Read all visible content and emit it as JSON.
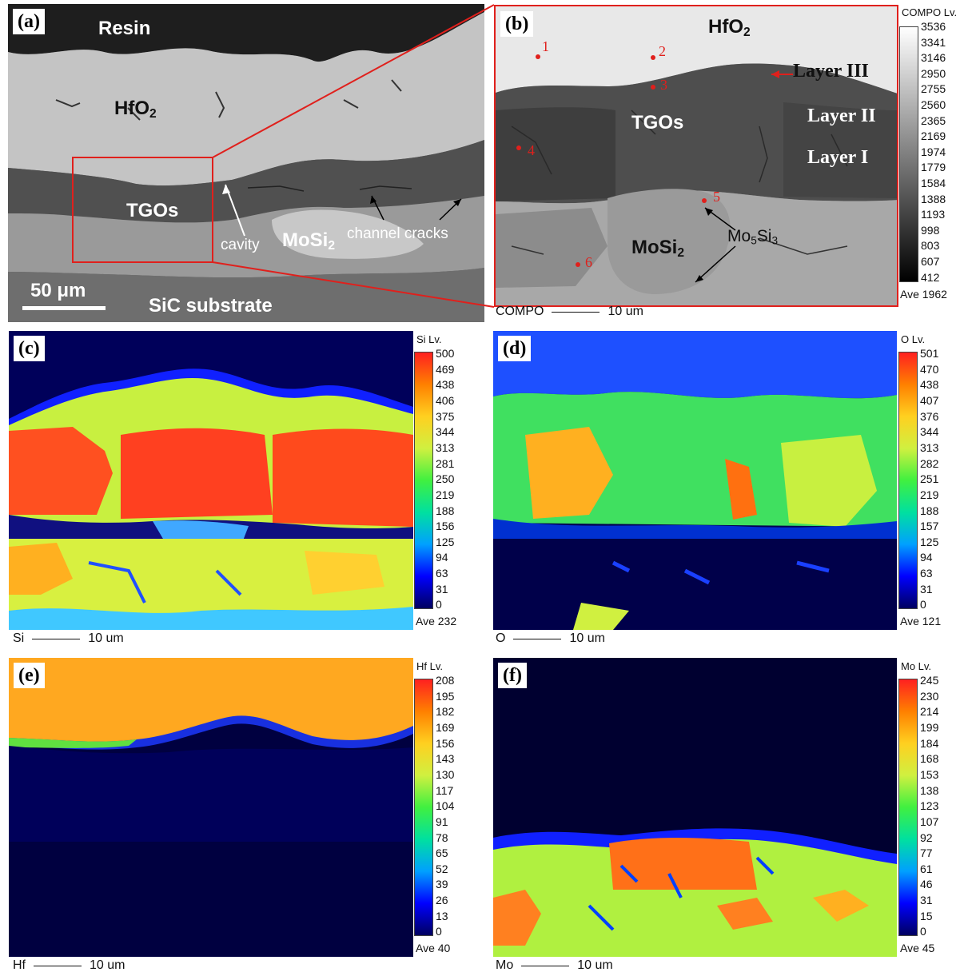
{
  "panel_a": {
    "letter": "(a)",
    "labels": {
      "resin": "Resin",
      "hfo2": "HfO",
      "hfo2_sub": "2",
      "tgos": "TGOs",
      "mosi2": "MoSi",
      "mosi2_sub": "2",
      "cavity": "cavity",
      "channel_cracks": "channel cracks",
      "sic": "SiC substrate",
      "scale": "50 μm"
    }
  },
  "panel_b": {
    "letter": "(b)",
    "labels": {
      "hfo2": "HfO",
      "hfo2_sub": "2",
      "layer3": "Layer III",
      "layer2": "Layer II",
      "layer1": "Layer I",
      "tgos": "TGOs",
      "mosi2": "MoSi",
      "mosi2_sub": "2",
      "mo5si3_a": "Mo",
      "mo5si3_b": "5",
      "mo5si3_c": "Si",
      "mo5si3_d": "3"
    },
    "points": [
      "1",
      "2",
      "3",
      "4",
      "5",
      "6"
    ],
    "colorbar": {
      "title": "COMPO Lv.",
      "ticks": [
        "3536",
        "3341",
        "3146",
        "2950",
        "2755",
        "2560",
        "2365",
        "2169",
        "1974",
        "1779",
        "1584",
        "1388",
        "1193",
        "998",
        "803",
        "607",
        "412"
      ],
      "average": "Ave 1962"
    },
    "scale": {
      "label": "COMPO",
      "value": "10 um"
    }
  },
  "panel_c": {
    "letter": "(c)",
    "colorbar": {
      "title": "Si Lv.",
      "ticks": [
        "500",
        "469",
        "438",
        "406",
        "375",
        "344",
        "313",
        "281",
        "250",
        "219",
        "188",
        "156",
        "125",
        "94",
        "63",
        "31",
        "0"
      ],
      "average": "Ave 232"
    },
    "scale": {
      "label": "Si",
      "value": "10 um"
    }
  },
  "panel_d": {
    "letter": "(d)",
    "colorbar": {
      "title": "O Lv.",
      "ticks": [
        "501",
        "470",
        "438",
        "407",
        "376",
        "344",
        "313",
        "282",
        "251",
        "219",
        "188",
        "157",
        "125",
        "94",
        "63",
        "31",
        "0"
      ],
      "average": "Ave 121"
    },
    "scale": {
      "label": "O",
      "value": "10 um"
    }
  },
  "panel_e": {
    "letter": "(e)",
    "colorbar": {
      "title": "Hf Lv.",
      "ticks": [
        "208",
        "195",
        "182",
        "169",
        "156",
        "143",
        "130",
        "117",
        "104",
        "91",
        "78",
        "65",
        "52",
        "39",
        "26",
        "13",
        "0"
      ],
      "average": "Ave 40"
    },
    "scale": {
      "label": "Hf",
      "value": "10 um"
    }
  },
  "panel_f": {
    "letter": "(f)",
    "colorbar": {
      "title": "Mo Lv.",
      "ticks": [
        "245",
        "230",
        "214",
        "199",
        "184",
        "168",
        "153",
        "138",
        "123",
        "107",
        "92",
        "77",
        "61",
        "46",
        "31",
        "15",
        "0"
      ],
      "average": "Ave 45"
    },
    "scale": {
      "label": "Mo",
      "value": "10 um"
    }
  },
  "colors": {
    "zoom_box": "#e0201c",
    "map_gradient": [
      "#000060",
      "#0000ff",
      "#00a0ff",
      "#00e0a0",
      "#40f040",
      "#d0f040",
      "#ffd020",
      "#ff8000",
      "#ff2020"
    ]
  }
}
